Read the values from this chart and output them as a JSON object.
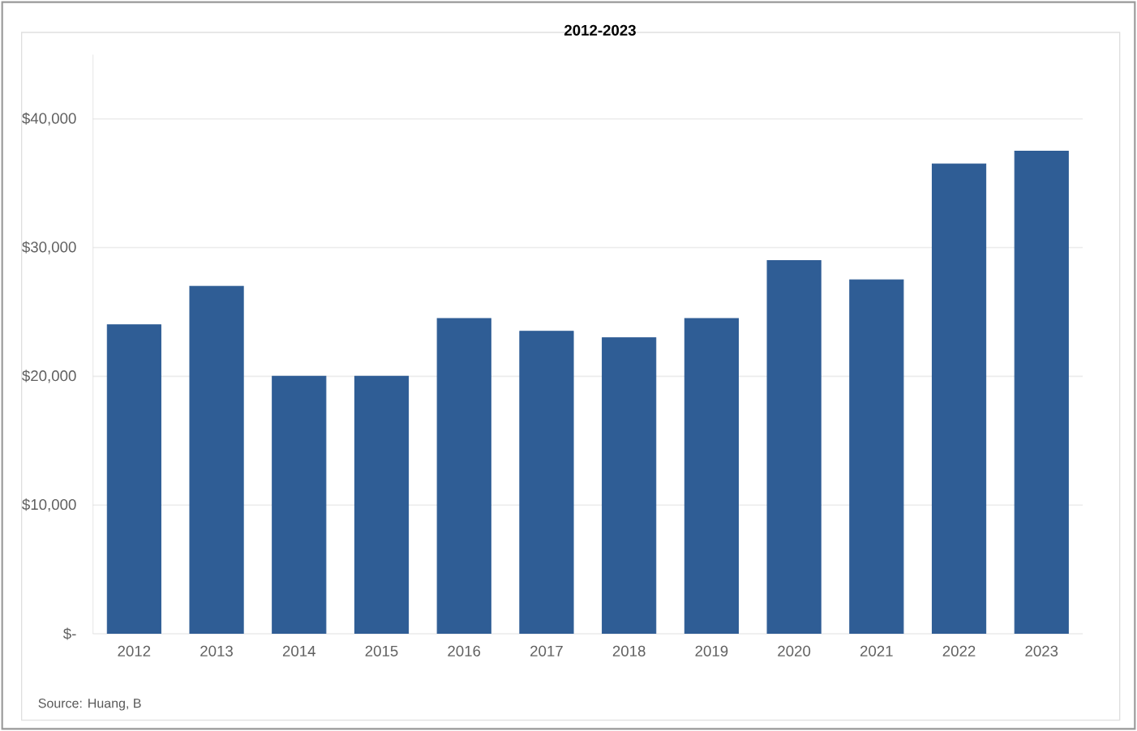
{
  "chart_data": {
    "type": "bar",
    "title": "2012-2023",
    "categories": [
      "2012",
      "2013",
      "2014",
      "2015",
      "2016",
      "2017",
      "2018",
      "2019",
      "2020",
      "2021",
      "2022",
      "2023"
    ],
    "values": [
      24000,
      27000,
      20000,
      20000,
      24500,
      23500,
      23000,
      24500,
      29000,
      27500,
      36500,
      37500
    ],
    "color": "#2f5d95",
    "ylim": [
      0,
      45000
    ],
    "yticks": [
      {
        "value": 0,
        "label": "$-"
      },
      {
        "value": 10000,
        "label": "$10,000"
      },
      {
        "value": 20000,
        "label": "$20,000"
      },
      {
        "value": 30000,
        "label": "$30,000"
      },
      {
        "value": 40000,
        "label": "$40,000"
      }
    ],
    "grid": "y",
    "annotations": [
      "Source: Huang, B"
    ]
  }
}
